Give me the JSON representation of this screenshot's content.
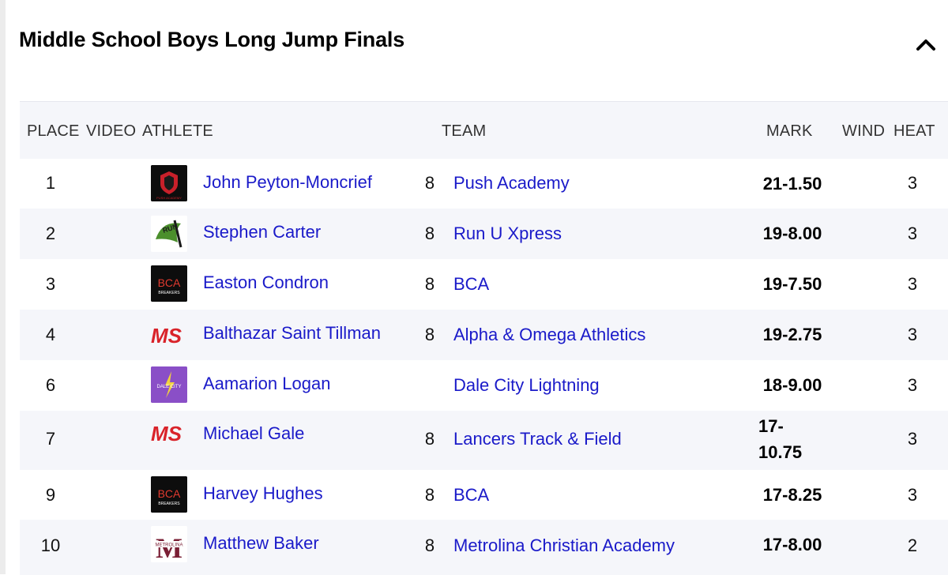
{
  "event": {
    "title": "Middle School Boys Long Jump Finals"
  },
  "table": {
    "headers": {
      "place": "PLACE",
      "video": "VIDEO",
      "athlete": "ATHLETE",
      "team": "TEAM",
      "mark": "MARK",
      "wind": "WIND",
      "heat": "HEAT"
    },
    "rows": [
      {
        "place": "1",
        "athlete": "John Peyton-Moncrief",
        "grade": "8",
        "team": "Push Academy",
        "mark": "21-1.50",
        "heat": "3",
        "logo": "push-academy-logo"
      },
      {
        "place": "2",
        "athlete": "Stephen Carter",
        "grade": "8",
        "team": "Run U Xpress",
        "mark": "19-8.00",
        "heat": "3",
        "logo": "run-u-xpress-logo"
      },
      {
        "place": "3",
        "athlete": "Easton Condron",
        "grade": "8",
        "team": "BCA",
        "mark": "19-7.50",
        "heat": "3",
        "logo": "bca-logo"
      },
      {
        "place": "4",
        "athlete": "Balthazar Saint Tillman",
        "grade": "8",
        "team": "Alpha & Omega Athletics",
        "mark": "19-2.75",
        "heat": "3",
        "logo": "ms-logo"
      },
      {
        "place": "6",
        "athlete": "Aamarion Logan",
        "grade": "",
        "team": "Dale City Lightning",
        "mark": "18-9.00",
        "heat": "3",
        "logo": "dale-city-logo"
      },
      {
        "place": "7",
        "athlete": "Michael Gale",
        "grade": "8",
        "team": "Lancers Track & Field",
        "mark": "17-10.75",
        "mark_line1": "17-",
        "mark_line2": "10.75",
        "heat": "3",
        "logo": "ms-logo"
      },
      {
        "place": "9",
        "athlete": "Harvey Hughes",
        "grade": "8",
        "team": "BCA",
        "mark": "17-8.25",
        "heat": "3",
        "logo": "bca-logo"
      },
      {
        "place": "10",
        "athlete": "Matthew Baker",
        "grade": "8",
        "team": "Metrolina Christian Academy",
        "mark": "17-8.00",
        "heat": "2",
        "logo": "metrolina-logo"
      }
    ],
    "logo_text": {
      "push": "PUSH ACADEMY",
      "run": "RUN",
      "bca": "BCA",
      "bca_sub": "BREAKERS",
      "ms": "MS",
      "dale": "DALE CITY",
      "metrolina": "METROLINA",
      "metrolina_m": "M"
    }
  },
  "colors": {
    "link": "#1a1ac9",
    "row_alt": "#f5f6fa",
    "ms_red": "#d9232a",
    "ms_navy": "#1f2a5c",
    "dale_purple": "#8a4fc7",
    "metrolina_maroon": "#7a1f35"
  }
}
